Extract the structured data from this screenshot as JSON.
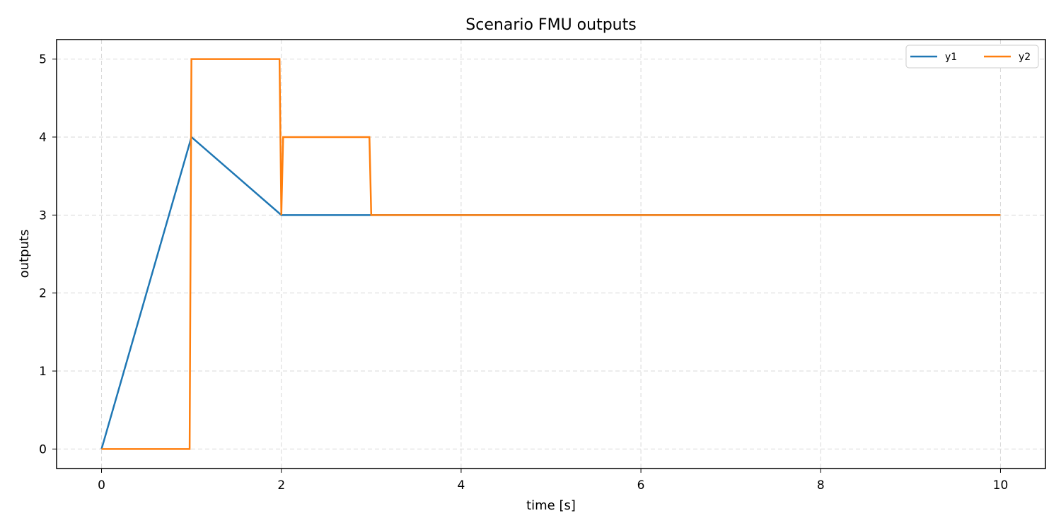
{
  "chart_data": {
    "type": "line",
    "title": "Scenario FMU outputs",
    "xlabel": "time [s]",
    "ylabel": "outputs",
    "xlim": [
      -0.5,
      10.5
    ],
    "ylim": [
      -0.25,
      5.25
    ],
    "xticks": [
      0,
      2,
      4,
      6,
      8,
      10
    ],
    "yticks": [
      0,
      1,
      2,
      3,
      4,
      5
    ],
    "grid": true,
    "legend_position": "top-right",
    "series": [
      {
        "name": "y1",
        "color": "#1f77b4",
        "points": [
          [
            0,
            0
          ],
          [
            1,
            4
          ],
          [
            2,
            3
          ],
          [
            3,
            3
          ],
          [
            10,
            3
          ]
        ]
      },
      {
        "name": "y2",
        "color": "#ff7f0e",
        "points": [
          [
            0,
            0
          ],
          [
            0.98,
            0
          ],
          [
            1,
            5
          ],
          [
            1.98,
            5
          ],
          [
            2,
            3
          ],
          [
            2.02,
            4
          ],
          [
            2.98,
            4
          ],
          [
            3,
            3
          ],
          [
            10,
            3
          ]
        ]
      }
    ]
  }
}
